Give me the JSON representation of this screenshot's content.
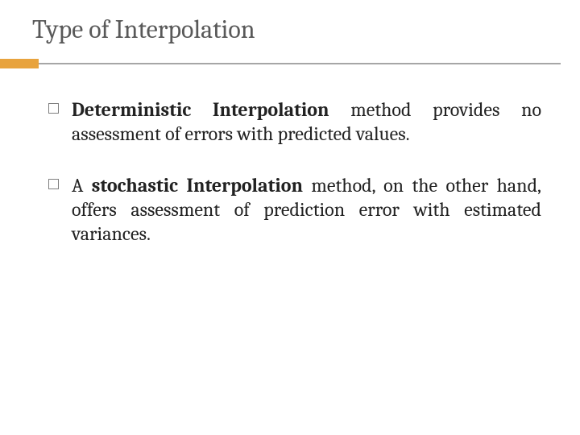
{
  "title": "Type of Interpolation",
  "accent_color": "#e8a33d",
  "divider_color": "#a6a6a6",
  "title_color": "#595959",
  "text_color": "#222222",
  "background_color": "#ffffff",
  "bullets": [
    {
      "bold": "Deterministic Interpolation",
      "rest": " method provides no assessment of errors with predicted values."
    },
    {
      "prefix": "A ",
      "bold": "stochastic Interpolation",
      "rest": " method, on the other hand, offers assessment of prediction error with estimated variances."
    }
  ]
}
